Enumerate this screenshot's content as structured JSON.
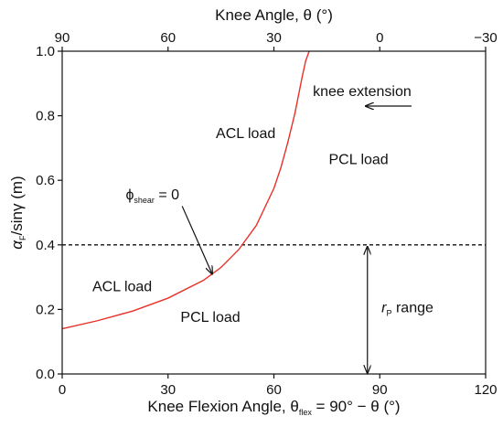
{
  "chart_data": {
    "type": "line",
    "title": "",
    "xlabel": {
      "main": "Knee Flexion Angle, θ",
      "sub": "flex",
      "rest": " = 90° − θ (°)"
    },
    "ylabel": {
      "main": "α",
      "sub": "F",
      "rest": "/sinγ (m)"
    },
    "top_xlabel": "Knee Angle, θ (°)",
    "xlim": [
      0,
      120
    ],
    "ylim": [
      0,
      1.0
    ],
    "x_ticks": [
      0,
      30,
      60,
      90,
      120
    ],
    "x_tick_labels": [
      "0",
      "30",
      "60",
      "90",
      "120"
    ],
    "y_ticks": [
      0,
      0.2,
      0.4,
      0.6,
      0.8,
      1.0
    ],
    "y_tick_labels": [
      "0.0",
      "0.2",
      "0.4",
      "0.6",
      "0.8",
      "1.0"
    ],
    "top_ticks": [
      0,
      30,
      60,
      90,
      120
    ],
    "top_tick_labels": [
      "90",
      "60",
      "30",
      "0",
      "−30"
    ],
    "grid": false,
    "series": [
      {
        "color": "#e8302a",
        "x": [
          0,
          10,
          20,
          30,
          40,
          45,
          50,
          55,
          60,
          62,
          64,
          66,
          68,
          69,
          70
        ],
        "y": [
          0.14,
          0.165,
          0.195,
          0.235,
          0.29,
          0.33,
          0.385,
          0.46,
          0.575,
          0.64,
          0.72,
          0.81,
          0.92,
          0.97,
          1.0
        ]
      }
    ],
    "reference_line": {
      "y": 0.4,
      "style": "dashed"
    },
    "annotations": [
      {
        "text": "knee extension",
        "x": 85,
        "y": 0.875
      },
      {
        "text": "ACL load",
        "x": 52,
        "y": 0.745
      },
      {
        "text": "PCL load",
        "x": 84,
        "y": 0.665
      },
      {
        "text": "ACL load",
        "x": 17,
        "y": 0.27
      },
      {
        "text": "PCL load",
        "x": 42,
        "y": 0.175
      }
    ],
    "phi_label": {
      "symbol": "ϕ",
      "sub": "shear",
      "rest": " = 0",
      "x": 18,
      "y": 0.555
    },
    "rp_label": {
      "main": "r",
      "sub": "P",
      "rest": " range",
      "x": 90.5,
      "y": 0.205
    }
  }
}
